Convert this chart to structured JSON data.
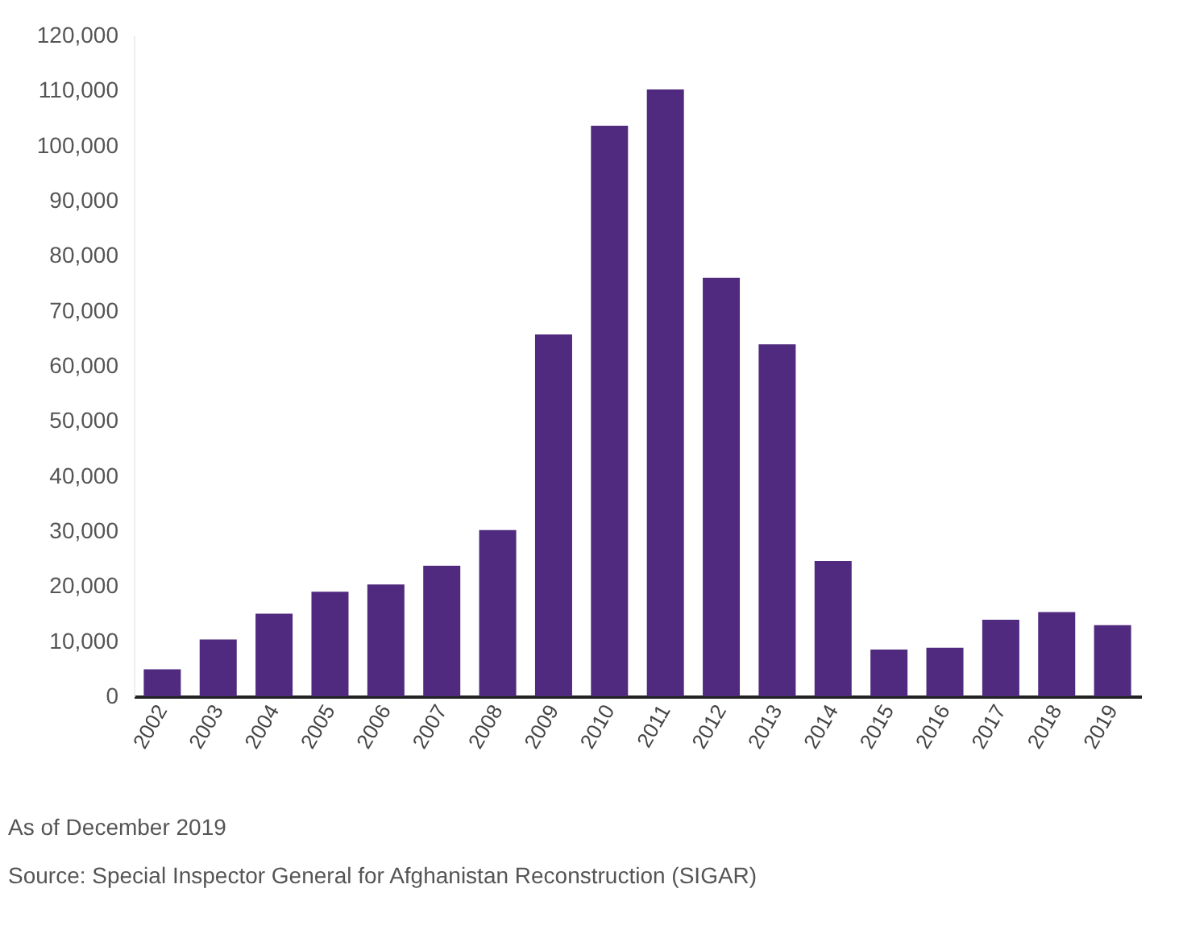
{
  "chart_data": {
    "type": "bar",
    "categories": [
      "2002",
      "2003",
      "2004",
      "2005",
      "2006",
      "2007",
      "2008",
      "2009",
      "2010",
      "2011",
      "2012",
      "2013",
      "2014",
      "2015",
      "2016",
      "2017",
      "2018",
      "2019"
    ],
    "values": [
      4900,
      10300,
      15000,
      19000,
      20300,
      23700,
      30200,
      65700,
      103600,
      110200,
      76000,
      63900,
      24600,
      8500,
      8800,
      13900,
      15300,
      12900
    ],
    "color": "#4f2a7f",
    "ylim": [
      0,
      120000
    ],
    "yticks": [
      0,
      {
        "value": 10000,
        "label": "10,000"
      },
      {
        "value": 20000,
        "label": "20,000"
      },
      {
        "value": 30000,
        "label": "30,000"
      },
      {
        "value": 40000,
        "label": "40,000"
      },
      {
        "value": 50000,
        "label": "50,000"
      },
      {
        "value": 60000,
        "label": "60,000"
      },
      {
        "value": 70000,
        "label": "70,000"
      },
      {
        "value": 80000,
        "label": "80,000"
      },
      {
        "value": 90000,
        "label": "90,000"
      },
      {
        "value": 100000,
        "label": "100,000"
      },
      {
        "value": 110000,
        "label": "110,000"
      },
      {
        "value": 120000,
        "label": "120,000"
      }
    ],
    "grid": false,
    "annotations": [
      "As of December 2019",
      "Source: Special Inspector General for Afghanistan Reconstruction (SIGAR)"
    ]
  }
}
